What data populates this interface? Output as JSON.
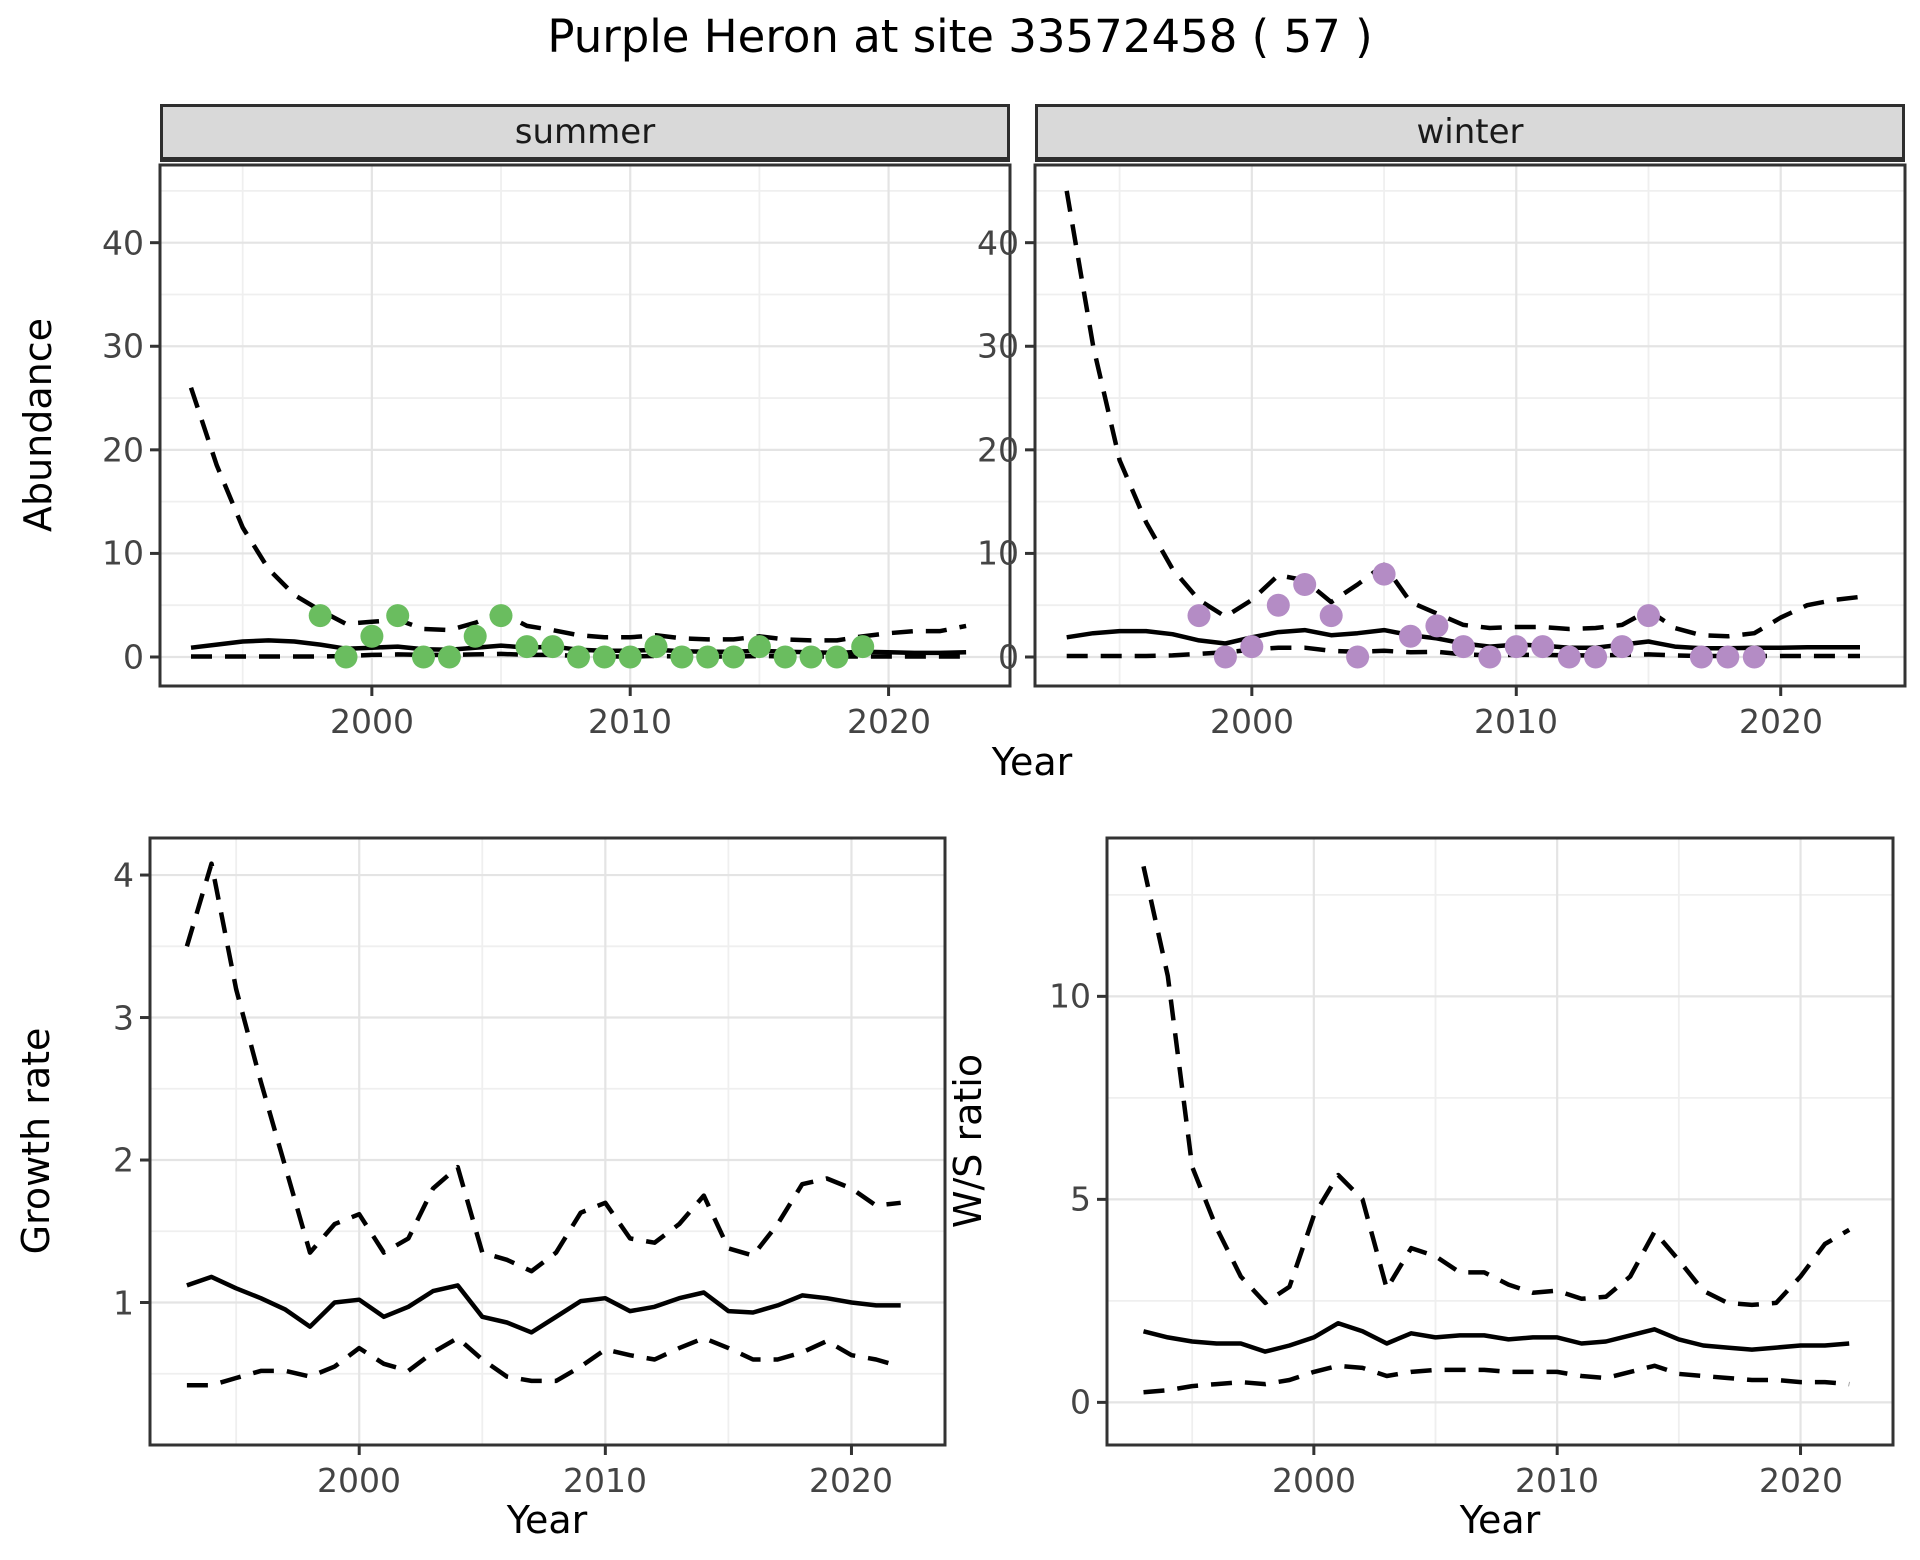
{
  "title": "Purple Heron at site 33572458 ( 57 )",
  "axes": {
    "abundance": "Abundance",
    "year": "Year",
    "growth_rate": "Growth rate",
    "ws_ratio": "W/S ratio"
  },
  "colors": {
    "summer_point": "#6abd5f",
    "winter_point": "#b48cc5",
    "line": "#000000",
    "panel_border": "#333333",
    "strip_fill": "#d9d9d9",
    "grid_major": "#e4e4e4",
    "grid_minor": "#efefef",
    "tick_text": "#444444"
  },
  "chart_data": [
    {
      "id": "summer",
      "type": "line",
      "facet_label": "summer",
      "xlabel": "Year",
      "ylabel": "Abundance",
      "x": [
        1993,
        1994,
        1995,
        1996,
        1997,
        1998,
        1999,
        2000,
        2001,
        2002,
        2003,
        2004,
        2005,
        2006,
        2007,
        2008,
        2009,
        2010,
        2011,
        2012,
        2013,
        2014,
        2015,
        2016,
        2017,
        2018,
        2019,
        2020,
        2021,
        2022,
        2023
      ],
      "series": [
        {
          "name": "median",
          "style": "solid",
          "values": [
            0.9,
            1.2,
            1.5,
            1.6,
            1.5,
            1.2,
            0.8,
            0.9,
            1.0,
            0.75,
            0.7,
            0.9,
            1.1,
            0.9,
            1.0,
            0.7,
            0.6,
            0.6,
            0.7,
            0.55,
            0.5,
            0.5,
            0.6,
            0.5,
            0.45,
            0.4,
            0.5,
            0.45,
            0.4,
            0.4,
            0.45
          ]
        },
        {
          "name": "upper-ci",
          "style": "dashed",
          "values": [
            26,
            18.5,
            12.5,
            8.5,
            6,
            4.5,
            3.2,
            3.4,
            3.6,
            2.7,
            2.6,
            3.3,
            4.3,
            3.0,
            2.6,
            2.1,
            1.9,
            1.9,
            2.1,
            1.8,
            1.7,
            1.7,
            2.0,
            1.7,
            1.6,
            1.6,
            2.0,
            2.3,
            2.5,
            2.5,
            3.0
          ]
        },
        {
          "name": "lower-ci",
          "style": "dashed",
          "values": [
            0.05,
            0.05,
            0.05,
            0.05,
            0.05,
            0.05,
            0.1,
            0.2,
            0.25,
            0.2,
            0.2,
            0.25,
            0.3,
            0.2,
            0.2,
            0.1,
            0.05,
            0.05,
            0.1,
            0.05,
            0.05,
            0.05,
            0.1,
            0.05,
            0.05,
            0.05,
            0.05,
            0.05,
            0.05,
            0.05,
            0.05
          ]
        }
      ],
      "observed_points": {
        "color": "#6abd5f",
        "data": [
          [
            1998,
            4
          ],
          [
            1999,
            0
          ],
          [
            2000,
            2
          ],
          [
            2001,
            4
          ],
          [
            2002,
            0
          ],
          [
            2003,
            0
          ],
          [
            2004,
            2
          ],
          [
            2005,
            4
          ],
          [
            2006,
            1
          ],
          [
            2007,
            1
          ],
          [
            2008,
            0
          ],
          [
            2009,
            0
          ],
          [
            2010,
            0
          ],
          [
            2011,
            1
          ],
          [
            2012,
            0
          ],
          [
            2013,
            0
          ],
          [
            2014,
            0
          ],
          [
            2015,
            1
          ],
          [
            2016,
            0
          ],
          [
            2017,
            0
          ],
          [
            2018,
            0
          ],
          [
            2019,
            1
          ]
        ]
      },
      "xlim": [
        1991.8,
        2024.7
      ],
      "ylim": [
        -2.8,
        47.5
      ],
      "x_ticks": [
        2000,
        2010,
        2020
      ],
      "y_ticks": [
        0,
        10,
        20,
        30,
        40
      ],
      "x_minor": [
        1995,
        2005,
        2015
      ],
      "y_minor": [
        5,
        15,
        25,
        35,
        45
      ]
    },
    {
      "id": "winter",
      "type": "line",
      "facet_label": "winter",
      "xlabel": "Year",
      "ylabel": "Abundance",
      "x": [
        1993,
        1994,
        1995,
        1996,
        1997,
        1998,
        1999,
        2000,
        2001,
        2002,
        2003,
        2004,
        2005,
        2006,
        2007,
        2008,
        2009,
        2010,
        2011,
        2012,
        2013,
        2014,
        2015,
        2016,
        2017,
        2018,
        2019,
        2020,
        2021,
        2022,
        2023
      ],
      "series": [
        {
          "name": "median",
          "style": "solid",
          "values": [
            1.9,
            2.3,
            2.5,
            2.5,
            2.2,
            1.6,
            1.3,
            1.9,
            2.4,
            2.6,
            2.1,
            2.3,
            2.6,
            2.1,
            1.8,
            1.3,
            1.0,
            1.2,
            1.1,
            0.9,
            0.9,
            1.2,
            1.5,
            1.0,
            0.85,
            0.85,
            0.9,
            0.9,
            0.95,
            0.95,
            0.95
          ]
        },
        {
          "name": "upper-ci",
          "style": "dashed",
          "values": [
            45,
            30,
            19,
            13,
            8.5,
            5.5,
            3.9,
            5.5,
            7.9,
            7.4,
            5.3,
            7.0,
            8.9,
            5.3,
            4.2,
            3.1,
            2.8,
            2.9,
            2.9,
            2.7,
            2.8,
            3.1,
            4.5,
            2.8,
            2.1,
            2.0,
            2.3,
            3.8,
            5.0,
            5.5,
            5.8
          ]
        },
        {
          "name": "lower-ci",
          "style": "dashed",
          "values": [
            0.1,
            0.1,
            0.1,
            0.1,
            0.15,
            0.3,
            0.45,
            0.7,
            0.9,
            0.9,
            0.6,
            0.5,
            0.6,
            0.45,
            0.5,
            0.25,
            0.15,
            0.2,
            0.2,
            0.15,
            0.15,
            0.2,
            0.25,
            0.15,
            0.1,
            0.1,
            0.1,
            0.1,
            0.1,
            0.1,
            0.1
          ]
        }
      ],
      "observed_points": {
        "color": "#b48cc5",
        "data": [
          [
            1998,
            4
          ],
          [
            1999,
            0
          ],
          [
            2000,
            1
          ],
          [
            2001,
            5
          ],
          [
            2002,
            7
          ],
          [
            2003,
            4
          ],
          [
            2004,
            0
          ],
          [
            2005,
            8
          ],
          [
            2006,
            2
          ],
          [
            2007,
            3
          ],
          [
            2008,
            1
          ],
          [
            2009,
            0
          ],
          [
            2010,
            1
          ],
          [
            2011,
            1
          ],
          [
            2012,
            0
          ],
          [
            2013,
            0
          ],
          [
            2014,
            1
          ],
          [
            2015,
            4
          ],
          [
            2017,
            0
          ],
          [
            2018,
            0
          ],
          [
            2019,
            0
          ]
        ]
      },
      "xlim": [
        1991.8,
        2024.7
      ],
      "ylim": [
        -2.8,
        47.5
      ],
      "x_ticks": [
        2000,
        2010,
        2020
      ],
      "y_ticks": [
        0,
        10,
        20,
        30,
        40
      ],
      "x_minor": [
        1995,
        2005,
        2015
      ],
      "y_minor": [
        5,
        15,
        25,
        35,
        45
      ]
    },
    {
      "id": "growth",
      "type": "line",
      "facet_label": null,
      "xlabel": "Year",
      "ylabel": "Growth rate",
      "x": [
        1993,
        1994,
        1995,
        1996,
        1997,
        1998,
        1999,
        2000,
        2001,
        2002,
        2003,
        2004,
        2005,
        2006,
        2007,
        2008,
        2009,
        2010,
        2011,
        2012,
        2013,
        2014,
        2015,
        2016,
        2017,
        2018,
        2019,
        2020,
        2021,
        2022
      ],
      "series": [
        {
          "name": "median",
          "style": "solid",
          "values": [
            1.12,
            1.18,
            1.1,
            1.03,
            0.95,
            0.83,
            1.0,
            1.02,
            0.9,
            0.97,
            1.08,
            1.12,
            0.9,
            0.86,
            0.79,
            0.9,
            1.01,
            1.03,
            0.94,
            0.97,
            1.03,
            1.07,
            0.94,
            0.93,
            0.98,
            1.05,
            1.03,
            1.0,
            0.98,
            0.98
          ]
        },
        {
          "name": "upper-ci",
          "style": "dashed",
          "values": [
            3.5,
            4.08,
            3.2,
            2.55,
            1.95,
            1.35,
            1.55,
            1.62,
            1.35,
            1.45,
            1.8,
            1.95,
            1.35,
            1.3,
            1.22,
            1.35,
            1.63,
            1.7,
            1.45,
            1.42,
            1.55,
            1.75,
            1.38,
            1.33,
            1.55,
            1.83,
            1.87,
            1.8,
            1.68,
            1.7
          ]
        },
        {
          "name": "lower-ci",
          "style": "dashed",
          "values": [
            0.42,
            0.42,
            0.47,
            0.52,
            0.52,
            0.48,
            0.55,
            0.68,
            0.57,
            0.52,
            0.65,
            0.75,
            0.6,
            0.48,
            0.45,
            0.45,
            0.55,
            0.67,
            0.63,
            0.6,
            0.68,
            0.75,
            0.68,
            0.6,
            0.6,
            0.65,
            0.73,
            0.63,
            0.6,
            0.55
          ]
        }
      ],
      "observed_points": null,
      "xlim": [
        1991.5,
        2023.8
      ],
      "ylim": [
        0.0,
        4.26
      ],
      "x_ticks": [
        2000,
        2010,
        2020
      ],
      "y_ticks": [
        1,
        2,
        3,
        4
      ],
      "x_minor": [
        1995,
        2005,
        2015
      ],
      "y_minor": [
        0.5,
        1.5,
        2.5,
        3.5
      ]
    },
    {
      "id": "ws",
      "type": "line",
      "facet_label": null,
      "xlabel": "Year",
      "ylabel": "W/S ratio",
      "x": [
        1993,
        1994,
        1995,
        1996,
        1997,
        1998,
        1999,
        2000,
        2001,
        2002,
        2003,
        2004,
        2005,
        2006,
        2007,
        2008,
        2009,
        2010,
        2011,
        2012,
        2013,
        2014,
        2015,
        2016,
        2017,
        2018,
        2019,
        2020,
        2021,
        2022
      ],
      "series": [
        {
          "name": "median",
          "style": "solid",
          "values": [
            1.75,
            1.6,
            1.5,
            1.45,
            1.45,
            1.25,
            1.4,
            1.6,
            1.95,
            1.75,
            1.45,
            1.7,
            1.6,
            1.65,
            1.65,
            1.55,
            1.6,
            1.6,
            1.45,
            1.5,
            1.65,
            1.8,
            1.55,
            1.4,
            1.35,
            1.3,
            1.35,
            1.4,
            1.4,
            1.45
          ]
        },
        {
          "name": "upper-ci",
          "style": "dashed",
          "values": [
            13.2,
            10.5,
            5.8,
            4.3,
            3.1,
            2.45,
            2.85,
            4.6,
            5.6,
            5.0,
            2.8,
            3.8,
            3.6,
            3.2,
            3.2,
            2.9,
            2.7,
            2.75,
            2.55,
            2.6,
            3.1,
            4.2,
            3.5,
            2.75,
            2.45,
            2.4,
            2.45,
            3.1,
            3.9,
            4.25
          ]
        },
        {
          "name": "lower-ci",
          "style": "dashed",
          "values": [
            0.25,
            0.3,
            0.4,
            0.45,
            0.5,
            0.45,
            0.55,
            0.75,
            0.9,
            0.85,
            0.65,
            0.75,
            0.8,
            0.8,
            0.8,
            0.75,
            0.75,
            0.75,
            0.65,
            0.6,
            0.75,
            0.9,
            0.7,
            0.65,
            0.6,
            0.55,
            0.55,
            0.5,
            0.5,
            0.45
          ]
        }
      ],
      "observed_points": null,
      "xlim": [
        1991.5,
        2023.8
      ],
      "ylim": [
        -1.05,
        13.9
      ],
      "x_ticks": [
        2000,
        2010,
        2020
      ],
      "y_ticks": [
        0,
        5,
        10
      ],
      "x_minor": [
        1995,
        2005,
        2015
      ],
      "y_minor": [
        2.5,
        7.5,
        12.5
      ]
    }
  ]
}
